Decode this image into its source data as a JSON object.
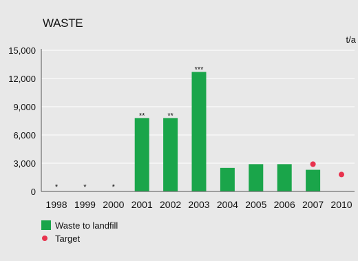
{
  "chart_data": {
    "type": "bar",
    "title": "WASTE",
    "unit": "t/a",
    "xlabel": "",
    "ylabel": "",
    "ylim": [
      0,
      15000
    ],
    "yticks": [
      0,
      3000,
      6000,
      9000,
      12000,
      15000
    ],
    "ytick_labels": [
      "0",
      "3,000",
      "6,000",
      "9,000",
      "12,000",
      "15,000"
    ],
    "grid": true,
    "categories": [
      "1998",
      "1999",
      "2000",
      "2001",
      "2002",
      "2003",
      "2004",
      "2005",
      "2006",
      "2007",
      "2010"
    ],
    "series": [
      {
        "name": "Waste to landfill",
        "mark": "bar",
        "color": "#1aa54a",
        "values": [
          null,
          null,
          null,
          7800,
          7800,
          12700,
          2500,
          2900,
          2900,
          2300,
          null
        ]
      },
      {
        "name": "Target",
        "mark": "point",
        "color": "#e8334e",
        "values": [
          null,
          null,
          null,
          null,
          null,
          null,
          null,
          null,
          null,
          2900,
          1800
        ]
      }
    ],
    "annotations": [
      {
        "category": "1998",
        "text": "*"
      },
      {
        "category": "1999",
        "text": "*"
      },
      {
        "category": "2000",
        "text": "*"
      },
      {
        "category": "2001",
        "text": "**"
      },
      {
        "category": "2002",
        "text": "**"
      },
      {
        "category": "2003",
        "text": "***"
      }
    ],
    "legend": {
      "position": "bottom-left",
      "items": [
        {
          "label": "Waste to landfill",
          "symbol": "square",
          "color": "#1aa54a"
        },
        {
          "label": "Target",
          "symbol": "circle",
          "color": "#e8334e"
        }
      ]
    },
    "colors": {
      "background": "#e8e8e8",
      "grid": "#ffffff",
      "bar": "#1aa54a",
      "target": "#e8334e"
    }
  }
}
